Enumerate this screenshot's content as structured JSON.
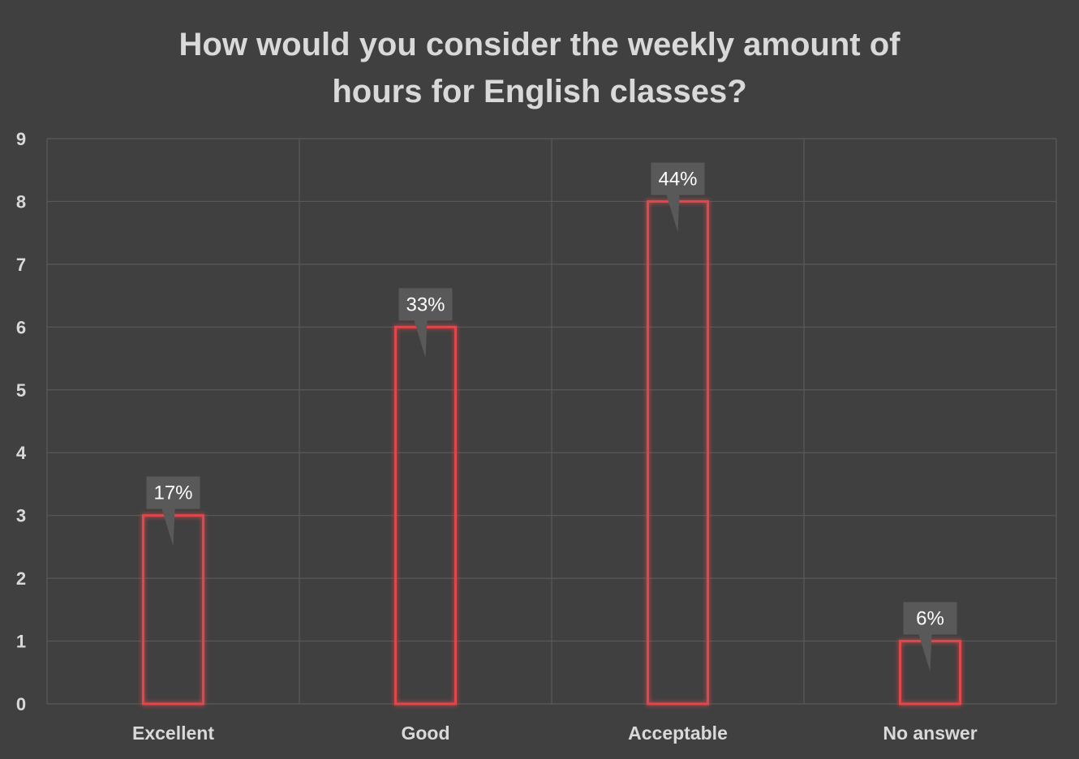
{
  "chart_data": {
    "type": "bar",
    "title": "How would you consider the weekly amount of hours for English classes?",
    "title_lines": [
      "How would you consider the weekly amount of",
      "hours for English classes?"
    ],
    "categories": [
      "Excellent",
      "Good",
      "Acceptable",
      "No answer"
    ],
    "values": [
      3,
      6,
      8,
      1
    ],
    "data_labels": [
      "17%",
      "33%",
      "44%",
      "6%"
    ],
    "xlabel": "",
    "ylabel": "",
    "ylim": [
      0,
      9
    ],
    "yticks": [
      "0",
      "1",
      "2",
      "3",
      "4",
      "5",
      "6",
      "7",
      "8",
      "9"
    ],
    "grid": true,
    "legend": "none"
  },
  "colors": {
    "background": "#404040",
    "gridline": "#595959",
    "bar_outline": "#e0474c",
    "bar_glow": "#ff4d4d",
    "label_box": "#595959",
    "text": "#d9d9d9",
    "label_text": "#ffffff"
  }
}
